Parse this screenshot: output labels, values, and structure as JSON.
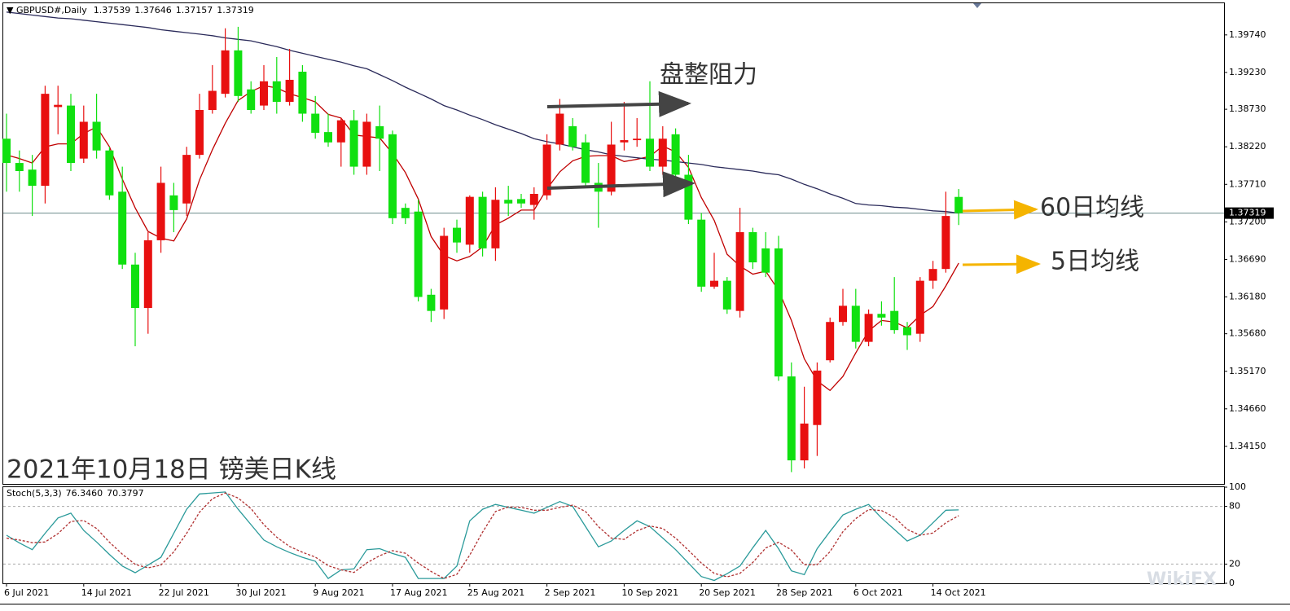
{
  "chart_data": [
    {
      "type": "candlestick",
      "title": "GBPUSD#,Daily",
      "categories": [
        "6 Jul 2021",
        null,
        null,
        null,
        null,
        null,
        "14 Jul 2021",
        null,
        null,
        null,
        null,
        null,
        "22 Jul 2021",
        null,
        null,
        null,
        null,
        null,
        "30 Jul 2021",
        null,
        null,
        null,
        null,
        null,
        "9 Aug 2021",
        null,
        null,
        null,
        null,
        null,
        "17 Aug 2021",
        null,
        null,
        null,
        null,
        null,
        "25 Aug 2021",
        null,
        null,
        null,
        null,
        null,
        "2 Sep 2021",
        null,
        null,
        null,
        null,
        null,
        "10 Sep 2021",
        null,
        null,
        null,
        null,
        null,
        "20 Sep 2021",
        null,
        null,
        null,
        null,
        null,
        "28 Sep 2021",
        null,
        null,
        null,
        null,
        null,
        "6 Oct 2021",
        null,
        null,
        null,
        null,
        null,
        "14 Oct 2021",
        null,
        null
      ],
      "open": [
        1.3833,
        1.38,
        1.3791,
        1.3769,
        1.3876,
        1.3878,
        1.3806,
        1.3856,
        1.3817,
        1.3761,
        1.3662,
        1.3603,
        1.3695,
        1.3756,
        1.3745,
        1.3811,
        1.3872,
        1.3894,
        1.3953,
        1.39,
        1.3878,
        1.3911,
        1.3883,
        1.3924,
        1.3867,
        1.3842,
        1.3828,
        1.3858,
        1.3795,
        1.385,
        1.3839,
        1.3739,
        1.3734,
        1.3621,
        1.3601,
        1.3712,
        1.3689,
        1.3754,
        1.3684,
        1.375,
        1.3751,
        1.3743,
        1.3756,
        1.3825,
        1.385,
        1.3828,
        1.3773,
        1.3761,
        1.3828,
        1.3831,
        1.3833,
        1.3795,
        1.3839,
        1.3784,
        1.3723,
        1.3632,
        1.364,
        1.3599,
        1.3706,
        1.3684,
        1.3684,
        1.351,
        1.3396,
        1.3444,
        1.3532,
        1.3584,
        1.3606,
        1.3557,
        1.3595,
        1.3599,
        1.3577,
        1.3568,
        1.364,
        1.3656,
        1.37539
      ],
      "high": [
        1.3867,
        1.3817,
        1.3811,
        1.3905,
        1.3905,
        1.3894,
        1.3878,
        1.3894,
        1.3822,
        1.3795,
        1.3678,
        1.3706,
        1.3795,
        1.3773,
        1.3822,
        1.3894,
        1.3933,
        1.3983,
        1.3985,
        1.3911,
        1.3933,
        1.3944,
        1.3955,
        1.3933,
        1.3891,
        1.3867,
        1.3861,
        1.3872,
        1.3867,
        1.3878,
        1.3844,
        1.3745,
        1.375,
        1.3629,
        1.3712,
        1.3723,
        1.3756,
        1.3761,
        1.3767,
        1.3769,
        1.3758,
        1.3767,
        1.3839,
        1.3887,
        1.3861,
        1.3839,
        1.38,
        1.3856,
        1.3883,
        1.3861,
        1.3911,
        1.385,
        1.3847,
        1.3811,
        1.3732,
        1.3678,
        1.3645,
        1.3739,
        1.3712,
        1.3706,
        1.3701,
        1.3529,
        1.3496,
        1.3529,
        1.359,
        1.3629,
        1.3629,
        1.3601,
        1.3612,
        1.3645,
        1.3584,
        1.3645,
        1.3667,
        1.3761,
        1.37646
      ],
      "low": [
        1.3761,
        1.3761,
        1.3728,
        1.3745,
        1.3839,
        1.3789,
        1.38,
        1.3806,
        1.375,
        1.3656,
        1.3551,
        1.3568,
        1.3678,
        1.3706,
        1.3728,
        1.3806,
        1.3867,
        1.3889,
        1.3883,
        1.3867,
        1.3872,
        1.3867,
        1.3878,
        1.3856,
        1.3833,
        1.3822,
        1.3795,
        1.3784,
        1.3784,
        1.3789,
        1.3717,
        1.3717,
        1.3612,
        1.3584,
        1.3588,
        1.3678,
        1.3678,
        1.3673,
        1.3667,
        1.3728,
        1.3739,
        1.3723,
        1.375,
        1.3817,
        1.3817,
        1.3767,
        1.3712,
        1.3756,
        1.3817,
        1.3822,
        1.3789,
        1.3784,
        1.3773,
        1.3717,
        1.3625,
        1.3629,
        1.3595,
        1.359,
        1.3656,
        1.3645,
        1.3504,
        1.338,
        1.3385,
        1.3402,
        1.3529,
        1.3579,
        1.3548,
        1.3551,
        1.3579,
        1.3568,
        1.3546,
        1.3557,
        1.3629,
        1.3651,
        1.37157
      ],
      "close": [
        1.38,
        1.3789,
        1.3769,
        1.3894,
        1.3879,
        1.38,
        1.3856,
        1.3817,
        1.3756,
        1.3662,
        1.3603,
        1.3695,
        1.3773,
        1.3736,
        1.3811,
        1.3872,
        1.3898,
        1.3953,
        1.3891,
        1.3872,
        1.3911,
        1.3883,
        1.3913,
        1.3867,
        1.3841,
        1.3828,
        1.3858,
        1.3795,
        1.3856,
        1.3833,
        1.3725,
        1.3725,
        1.3618,
        1.3599,
        1.3701,
        1.3692,
        1.3754,
        1.3684,
        1.375,
        1.3745,
        1.3745,
        1.3758,
        1.3825,
        1.3867,
        1.3822,
        1.3773,
        1.3761,
        1.3825,
        1.3831,
        1.3833,
        1.3795,
        1.3833,
        1.3784,
        1.3723,
        1.3632,
        1.364,
        1.3601,
        1.3706,
        1.3665,
        1.3651,
        1.351,
        1.3396,
        1.3446,
        1.3518,
        1.3584,
        1.3606,
        1.3557,
        1.3595,
        1.359,
        1.3573,
        1.3566,
        1.364,
        1.3656,
        1.3728,
        1.37319
      ],
      "up_color": "#e81010",
      "down_color": "#10e010",
      "series": [
        {
          "color": "#c00000",
          "values": [
            1.3811,
            1.3806,
            1.38,
            1.3822,
            1.3826,
            1.3826,
            1.384,
            1.3849,
            1.3822,
            1.3778,
            1.3739,
            1.3707,
            1.3698,
            1.3694,
            1.3724,
            1.3777,
            1.3818,
            1.3854,
            1.3885,
            1.3897,
            1.3905,
            1.3902,
            1.3894,
            1.3889,
            1.3883,
            1.3866,
            1.3861,
            1.3838,
            1.3836,
            1.3834,
            1.3813,
            1.3787,
            1.3751,
            1.37,
            1.3674,
            1.3667,
            1.3673,
            1.3686,
            1.3716,
            1.3725,
            1.3736,
            1.3736,
            1.3765,
            1.3788,
            1.3803,
            1.3809,
            1.381,
            1.381,
            1.3802,
            1.3805,
            1.3809,
            1.3823,
            1.3815,
            1.3794,
            1.3753,
            1.3722,
            1.3676,
            1.366,
            1.3649,
            1.3653,
            1.3627,
            1.3586,
            1.3534,
            1.3504,
            1.3491,
            1.351,
            1.3542,
            1.3572,
            1.3586,
            1.3584,
            1.3576,
            1.3593,
            1.3605,
            1.3633,
            1.3664
          ]
        },
        {
          "color": "#2a2a5a",
          "values": [
            1.4005,
            1.4003,
            1.4001,
            1.3999,
            1.3997,
            1.3996,
            1.3994,
            1.3992,
            1.399,
            1.3988,
            1.3986,
            1.3984,
            1.3981,
            1.3979,
            1.3977,
            1.3975,
            1.3973,
            1.397,
            1.3968,
            1.3966,
            1.3962,
            1.3958,
            1.3953,
            1.3949,
            1.3945,
            1.3941,
            1.3937,
            1.3932,
            1.3928,
            1.392,
            1.3912,
            1.3903,
            1.3895,
            1.3887,
            1.3878,
            1.3872,
            1.3865,
            1.3859,
            1.3852,
            1.3846,
            1.384,
            1.3833,
            1.3829,
            1.3826,
            1.3822,
            1.3818,
            1.3815,
            1.3811,
            1.3809,
            1.3807,
            1.3805,
            1.3804,
            1.3802,
            1.38,
            1.3798,
            1.3795,
            1.3793,
            1.3791,
            1.3789,
            1.3786,
            1.3784,
            1.3778,
            1.3771,
            1.3765,
            1.3758,
            1.3752,
            1.3745,
            1.3743,
            1.3742,
            1.374,
            1.3739,
            1.3737,
            1.3735,
            1.3734,
            1.3732
          ]
        }
      ],
      "ylim": [
        1.3364,
        1.4017
      ],
      "yticks": [
        {
          "value": 1.3974,
          "label": "1.39740"
        },
        {
          "value": 1.3923,
          "label": "1.39230"
        },
        {
          "value": 1.3873,
          "label": "1.38730"
        },
        {
          "value": 1.3822,
          "label": "1.38220"
        },
        {
          "value": 1.3771,
          "label": "1.37710"
        },
        {
          "value": 1.372,
          "label": "1.37200"
        },
        {
          "value": 1.3669,
          "label": "1.36690"
        },
        {
          "value": 1.3618,
          "label": "1.36180"
        },
        {
          "value": 1.3568,
          "label": "1.35680"
        },
        {
          "value": 1.3517,
          "label": "1.35170"
        },
        {
          "value": 1.3466,
          "label": "1.34660"
        },
        {
          "value": 1.3415,
          "label": "1.34150"
        }
      ],
      "last_price": 1.37319,
      "annotations": [
        "盘整阻力",
        "60日均线",
        "5日均线"
      ],
      "caption": "2021年10月18日 镑美日K线"
    },
    {
      "type": "line",
      "title": "Stoch(5,3,3)",
      "readout": [
        {
          "value": 76.346,
          "label": "76.3460"
        },
        70.3797
      ],
      "series": [
        {
          "color": "#2a9a9a",
          "dashed": false,
          "values": [
            50,
            42,
            35,
            52,
            68,
            73,
            55,
            43,
            30,
            18,
            11,
            19,
            27,
            52,
            77,
            93,
            94,
            95,
            77,
            61,
            45,
            38,
            32,
            27,
            23,
            5,
            14,
            15,
            35,
            36,
            31,
            27,
            5,
            5,
            5,
            18,
            65,
            77,
            82,
            79,
            76,
            73,
            79,
            85,
            80,
            59,
            38,
            44,
            55,
            65,
            59,
            47,
            35,
            21,
            7,
            3,
            10,
            18,
            37,
            55,
            36,
            13,
            9,
            36,
            54,
            71,
            77,
            82,
            68,
            56,
            44,
            50,
            63,
            76,
            76.346
          ]
        },
        {
          "color": "#b03030",
          "dashed": true,
          "values": [
            47,
            45,
            42.3,
            43,
            51.7,
            64.3,
            65.3,
            57,
            42.7,
            30.3,
            19.7,
            16,
            19,
            32.7,
            52,
            74,
            88,
            94,
            88.7,
            77.7,
            61,
            48,
            38.3,
            32.3,
            27.3,
            18.3,
            14,
            11.3,
            21.3,
            28.7,
            34,
            31.3,
            21,
            12.3,
            5,
            9.3,
            29.3,
            53.3,
            74.7,
            79.3,
            79,
            76,
            76,
            79,
            81.3,
            74.7,
            59,
            47,
            45.7,
            54.7,
            59.7,
            57,
            47,
            34.3,
            21,
            10.3,
            6.7,
            10.3,
            21.7,
            36.7,
            42.7,
            34.7,
            19.3,
            19.3,
            33,
            53.7,
            67.3,
            76.7,
            75.7,
            68.7,
            56,
            50,
            52.3,
            63,
            70.3797
          ]
        }
      ],
      "ylim": [
        0,
        100
      ],
      "yticks": [
        0,
        20,
        80,
        100
      ],
      "levels": [
        20,
        80
      ]
    }
  ],
  "watermark": "WikiFX"
}
